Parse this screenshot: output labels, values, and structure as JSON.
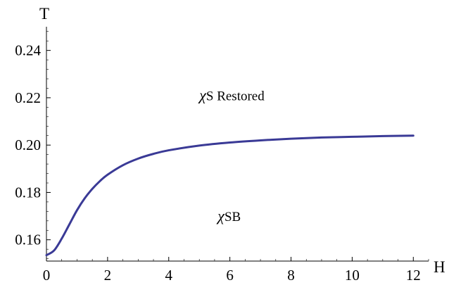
{
  "chart_data": {
    "type": "line",
    "title": "",
    "xlabel": "H",
    "ylabel": "T",
    "xlim": [
      0,
      12.5
    ],
    "ylim": [
      0.151,
      0.25
    ],
    "x_ticks": [
      0,
      2,
      4,
      6,
      8,
      10,
      12
    ],
    "y_ticks": [
      0.16,
      0.18,
      0.2,
      0.22,
      0.24
    ],
    "x_tick_labels": [
      "0",
      "2",
      "4",
      "6",
      "8",
      "10",
      "12"
    ],
    "y_tick_labels": [
      "0.16",
      "0.18",
      "0.20",
      "0.22",
      "0.24"
    ],
    "grid": false,
    "series": [
      {
        "color": "#3a3a96",
        "x": [
          0,
          0.25,
          0.5,
          0.75,
          1.0,
          1.25,
          1.5,
          1.75,
          2.0,
          2.5,
          3.0,
          3.5,
          4.0,
          5.0,
          6.0,
          7.0,
          8.0,
          9.0,
          10.0,
          11.0,
          12.0
        ],
        "y": [
          0.1535,
          0.1555,
          0.1605,
          0.1665,
          0.1725,
          0.1775,
          0.1815,
          0.1848,
          0.1875,
          0.1915,
          0.1943,
          0.1963,
          0.1978,
          0.1998,
          0.2011,
          0.202,
          0.2027,
          0.2032,
          0.2035,
          0.2038,
          0.204
        ]
      }
    ],
    "annotations": [
      {
        "greek": "χ",
        "text": "S Restored",
        "x": 5.0,
        "y": 0.219
      },
      {
        "greek": "χ",
        "text": "SB",
        "x": 5.6,
        "y": 0.168
      }
    ]
  }
}
